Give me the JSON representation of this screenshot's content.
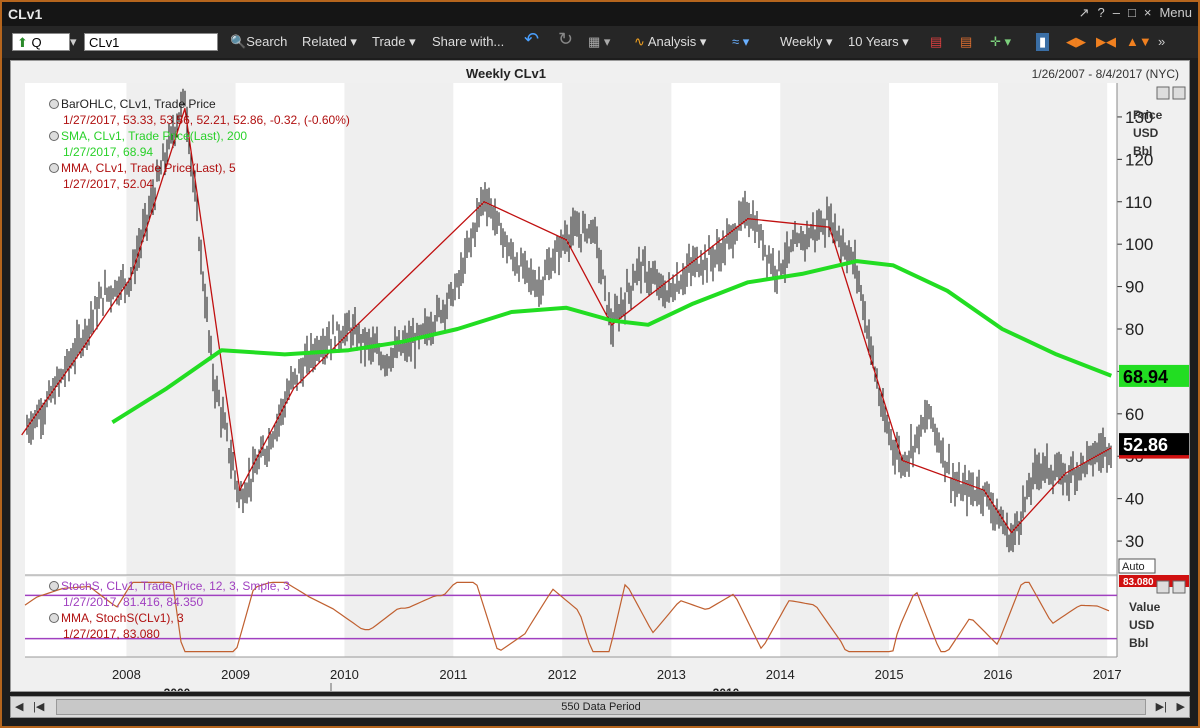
{
  "window": {
    "title": "CLv1",
    "menu_label": "Menu",
    "controls": [
      "↗",
      "?",
      "–",
      "□",
      "×"
    ]
  },
  "toolbar": {
    "symbol_prefix": "Q",
    "symbol_value": "CLv1",
    "search_label": "Search",
    "related_label": "Related",
    "trade_label": "Trade",
    "share_label": "Share with...",
    "analysis_label": "Analysis",
    "interval_label": "Weekly",
    "range_label": "10 Years"
  },
  "chart_header": {
    "title": "Weekly CLv1",
    "date_range": "1/26/2007 - 8/4/2017 (NYC)"
  },
  "legend": {
    "bar": {
      "label": "BarOHLC, CLv1, Trade Price",
      "values": "1/27/2017, 53.33, 53.56, 52.21, 52.86, -0.32, (-0.60%)"
    },
    "sma": {
      "label": "SMA, CLv1, Trade Price(Last),  200",
      "values": "1/27/2017, 68.94"
    },
    "mma": {
      "label": "MMA, CLv1, Trade Price(Last),  5",
      "values": "1/27/2017, 52.04"
    }
  },
  "stoch_legend": {
    "stoch": {
      "label": "StochS, CLv1, Trade Price,  12,  3,  Smple,  3",
      "values": "1/27/2017, 81.416,  84.350"
    },
    "mma": {
      "label": "MMA, StochS(CLv1),  3",
      "values": "1/27/2017, 83.080"
    }
  },
  "price_axis": {
    "header": [
      "Price",
      "USD",
      "Bbl"
    ],
    "ticks": [
      30,
      40,
      50,
      60,
      70,
      80,
      90,
      100,
      110,
      120,
      130
    ],
    "auto_label": "Auto",
    "last_price": "52.86",
    "sma_price": "68.94",
    "mma_price": "52.04",
    "stoch_value": "83.080"
  },
  "stoch_axis": {
    "header": [
      "Value",
      "USD",
      "Bbl"
    ]
  },
  "x_axis": {
    "year_ticks": [
      "2008",
      "2009",
      "2010",
      "2011",
      "2012",
      "2013",
      "2014",
      "2015",
      "2016",
      "2017"
    ],
    "decade_labels": [
      "2000",
      "2010"
    ]
  },
  "scrollbar": {
    "label": "550 Data Period"
  },
  "colors": {
    "sma": "#22dd22",
    "mma": "#c01010",
    "bars": "#111111",
    "stoch": "#c06030",
    "stoch_levels": "#a040c0",
    "last_price_bg": "#000000",
    "sma_price_bg": "#22dd22",
    "mma_price_bg": "#d01010"
  },
  "chart_data": {
    "type": "line",
    "title": "Weekly CLv1",
    "ylabel": "Price USD Bbl",
    "ylim": [
      22,
      138
    ],
    "x_range": [
      "2007-01-26",
      "2017-02-03"
    ],
    "series": [
      {
        "name": "BarOHLC, CLv1, Trade Price",
        "x": [
          "2007-01",
          "2007-04",
          "2007-07",
          "2007-10",
          "2008-01",
          "2008-04",
          "2008-07",
          "2008-10",
          "2009-01",
          "2009-04",
          "2009-07",
          "2009-10",
          "2010-01",
          "2010-05",
          "2010-09",
          "2011-01",
          "2011-04",
          "2011-07",
          "2011-10",
          "2012-01",
          "2012-04",
          "2012-06",
          "2012-09",
          "2012-12",
          "2013-03",
          "2013-06",
          "2013-09",
          "2013-12",
          "2014-03",
          "2014-06",
          "2014-09",
          "2014-12",
          "2015-02",
          "2015-05",
          "2015-08",
          "2015-11",
          "2016-02",
          "2016-05",
          "2016-08",
          "2016-11",
          "2017-01"
        ],
        "values": [
          55,
          63,
          75,
          88,
          92,
          115,
          135,
          70,
          40,
          52,
          68,
          77,
          80,
          73,
          78,
          90,
          112,
          97,
          90,
          102,
          104,
          80,
          95,
          88,
          95,
          98,
          108,
          94,
          101,
          106,
          94,
          58,
          48,
          60,
          42,
          42,
          30,
          48,
          45,
          50,
          53
        ]
      },
      {
        "name": "SMA, CLv1, Trade Price(Last),  200",
        "x": [
          "2007-11",
          "2008-05",
          "2008-11",
          "2009-06",
          "2010-01",
          "2010-07",
          "2011-01",
          "2011-07",
          "2012-01",
          "2012-06",
          "2012-10",
          "2013-03",
          "2013-09",
          "2014-03",
          "2014-09",
          "2015-01",
          "2015-07",
          "2016-01",
          "2016-07",
          "2017-01"
        ],
        "values": [
          58,
          66,
          75,
          74,
          75,
          77,
          80,
          84,
          85,
          82,
          81,
          86,
          91,
          93,
          96,
          95,
          89,
          80,
          74,
          69
        ]
      },
      {
        "name": "MMA, CLv1, Trade Price(Last),  5",
        "x": [
          "2007-01",
          "2007-07",
          "2008-01",
          "2008-07",
          "2009-01",
          "2009-07",
          "2010-01",
          "2011-04",
          "2012-01",
          "2012-06",
          "2013-09",
          "2014-06",
          "2015-02",
          "2015-11",
          "2016-02",
          "2016-08",
          "2017-01"
        ],
        "values": [
          55,
          73,
          92,
          132,
          42,
          66,
          79,
          110,
          101,
          81,
          106,
          104,
          49,
          42,
          32,
          46,
          52
        ]
      }
    ],
    "stochastic": {
      "name": "StochS, CLv1, Trade Price,  12,  3,  Smple,  3",
      "upper_level": 80,
      "lower_level": 20
    }
  }
}
